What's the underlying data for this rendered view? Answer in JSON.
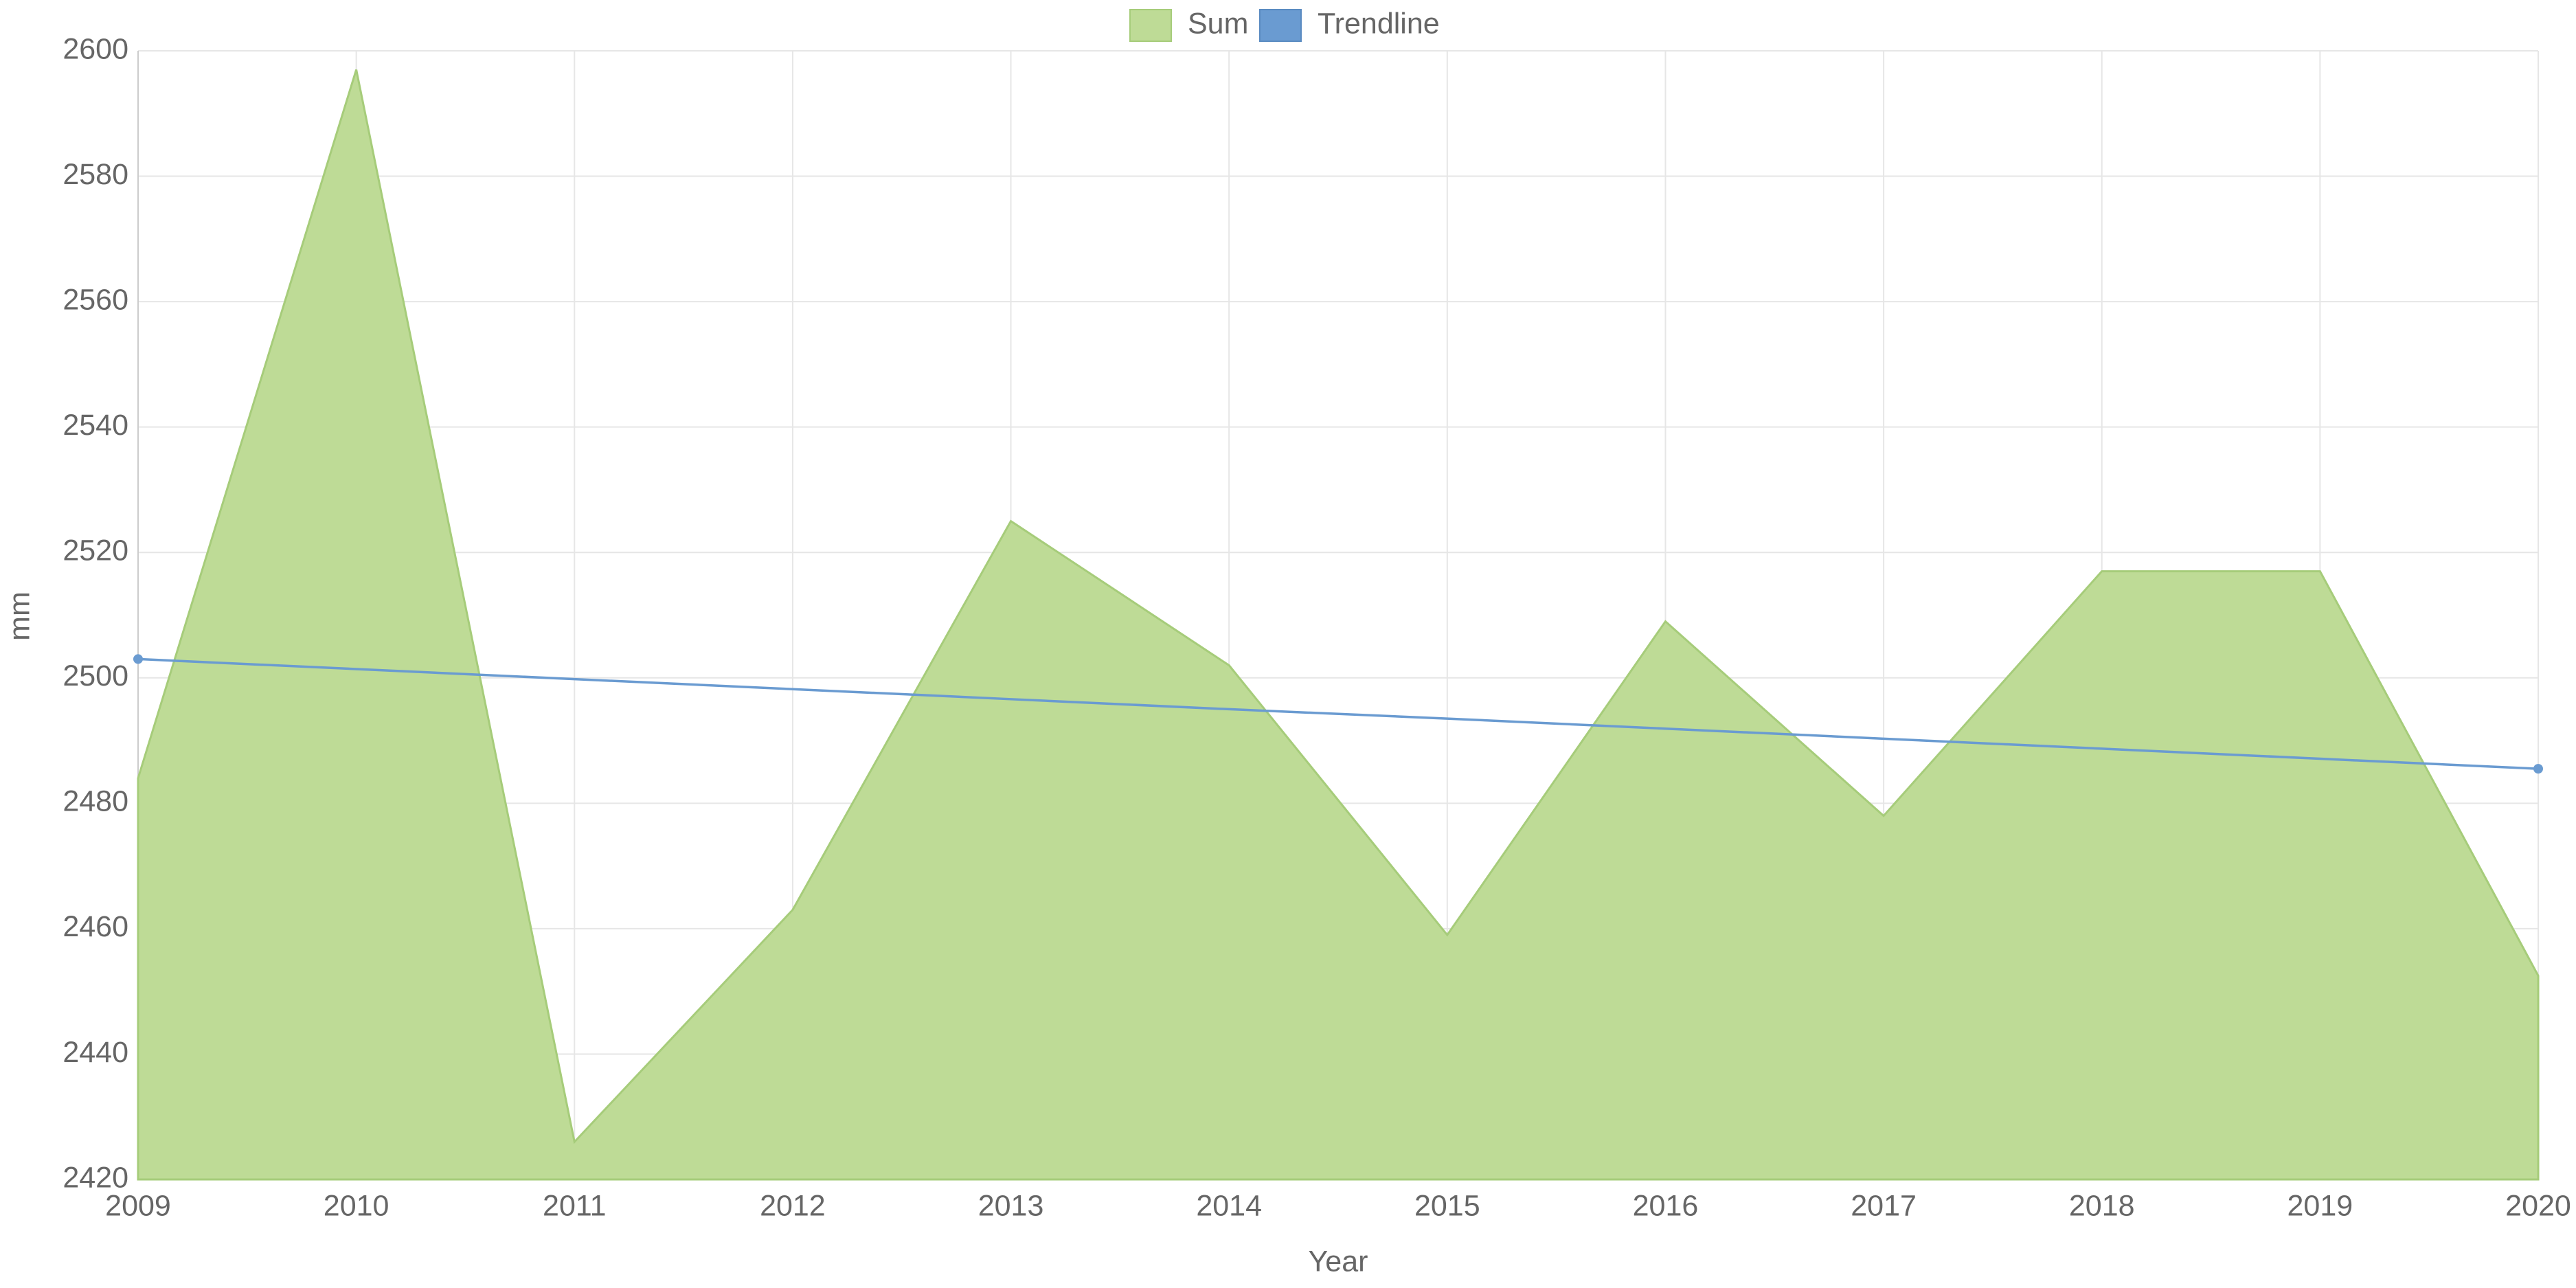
{
  "chart_data": {
    "type": "area",
    "x_label": "Year",
    "y_label": "mm",
    "categories": [
      "2009",
      "2010",
      "2011",
      "2012",
      "2013",
      "2014",
      "2015",
      "2016",
      "2017",
      "2018",
      "2019",
      "2020"
    ],
    "series": [
      {
        "name": "Sum",
        "color": "#bedb96",
        "values": [
          2484,
          2597,
          2426,
          2463,
          2525,
          2502,
          2459,
          2509,
          2478,
          2517,
          2517,
          2452.5
        ]
      },
      {
        "name": "Trendline",
        "color": "#6a9bd1",
        "values": [
          2503,
          2501.4,
          2499.8,
          2498.2,
          2496.6,
          2495,
          2493.5,
          2491.9,
          2490.3,
          2488.7,
          2487.1,
          2485.5
        ]
      }
    ],
    "ylim": [
      2420,
      2600
    ],
    "yticks": [
      2420,
      2440,
      2460,
      2480,
      2500,
      2520,
      2540,
      2560,
      2580,
      2600
    ],
    "grid": true,
    "legend": "top"
  }
}
